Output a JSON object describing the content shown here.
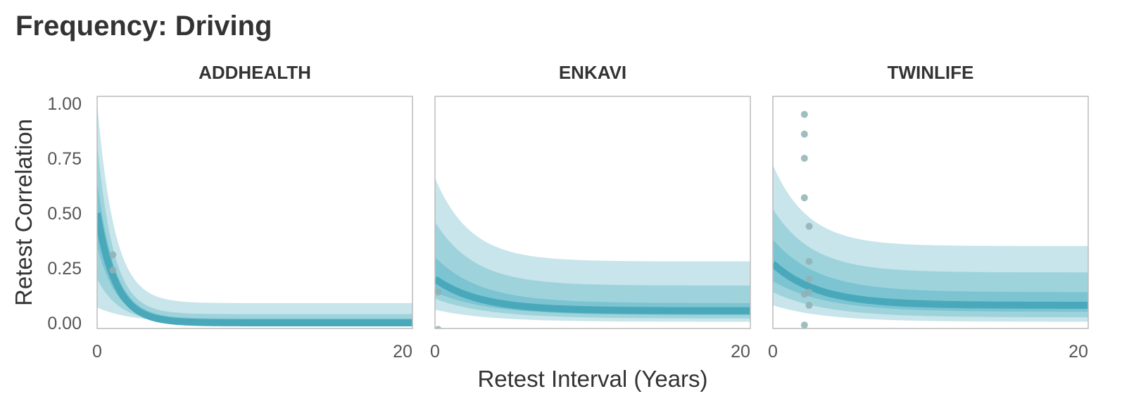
{
  "title": "Frequency: Driving",
  "colors": {
    "band_outer": "#c7e5ea",
    "band_mid": "#9fd3dc",
    "band_inner": "#7cc4d1",
    "line": "#49a9bb",
    "point": "#8fb2b5",
    "frame": "#bbbbbb"
  },
  "chart_data": {
    "type": "line",
    "xlabel": "Retest Interval (Years)",
    "ylabel": "Retest Correlation",
    "xlim": [
      0,
      20
    ],
    "ylim": [
      0,
      1
    ],
    "xticks": [
      "0",
      "20"
    ],
    "yticks": [
      "0.00",
      "0.25",
      "0.50",
      "0.75",
      "1.00"
    ],
    "panels": [
      {
        "name": "ADDHEALTH",
        "median": {
          "start": 0.5,
          "asym": 0.0,
          "rate": 0.85
        },
        "bands": [
          {
            "level": "outer",
            "upper": {
              "start": 1.0,
              "asym": 0.09,
              "rate": 0.9
            },
            "lower": {
              "start": 0.07,
              "asym": 0.0,
              "rate": 0.45
            }
          },
          {
            "level": "mid",
            "upper": {
              "start": 0.82,
              "asym": 0.04,
              "rate": 0.95
            },
            "lower": {
              "start": 0.2,
              "asym": 0.0,
              "rate": 0.7
            }
          },
          {
            "level": "inner",
            "upper": {
              "start": 0.65,
              "asym": 0.02,
              "rate": 0.9
            },
            "lower": {
              "start": 0.35,
              "asym": 0.0,
              "rate": 0.8
            }
          }
        ],
        "points": [
          {
            "x": 1.0,
            "y": 0.31
          },
          {
            "x": 1.0,
            "y": 0.24
          }
        ]
      },
      {
        "name": "ENKAVI",
        "median": {
          "start": 0.2,
          "asym": 0.055,
          "rate": 0.35
        },
        "bands": [
          {
            "level": "outer",
            "upper": {
              "start": 0.66,
              "asym": 0.28,
              "rate": 0.45
            },
            "lower": {
              "start": 0.06,
              "asym": 0.005,
              "rate": 0.3
            }
          },
          {
            "level": "mid",
            "upper": {
              "start": 0.46,
              "asym": 0.17,
              "rate": 0.4
            },
            "lower": {
              "start": 0.11,
              "asym": 0.02,
              "rate": 0.3
            }
          },
          {
            "level": "inner",
            "upper": {
              "start": 0.3,
              "asym": 0.09,
              "rate": 0.35
            },
            "lower": {
              "start": 0.14,
              "asym": 0.035,
              "rate": 0.3
            }
          }
        ],
        "points": [
          {
            "x": 0.2,
            "y": 0.14
          },
          {
            "x": 0.2,
            "y": -0.03
          }
        ]
      },
      {
        "name": "TWINLIFE",
        "median": {
          "start": 0.27,
          "asym": 0.08,
          "rate": 0.35
        },
        "bands": [
          {
            "level": "outer",
            "upper": {
              "start": 0.72,
              "asym": 0.35,
              "rate": 0.45
            },
            "lower": {
              "start": 0.08,
              "asym": 0.005,
              "rate": 0.3
            }
          },
          {
            "level": "mid",
            "upper": {
              "start": 0.52,
              "asym": 0.23,
              "rate": 0.4
            },
            "lower": {
              "start": 0.14,
              "asym": 0.025,
              "rate": 0.3
            }
          },
          {
            "level": "inner",
            "upper": {
              "start": 0.38,
              "asym": 0.14,
              "rate": 0.35
            },
            "lower": {
              "start": 0.19,
              "asym": 0.05,
              "rate": 0.3
            }
          }
        ],
        "points": [
          {
            "x": 2.0,
            "y": 0.95
          },
          {
            "x": 2.0,
            "y": 0.86
          },
          {
            "x": 2.0,
            "y": 0.75
          },
          {
            "x": 2.0,
            "y": 0.57
          },
          {
            "x": 2.3,
            "y": 0.44
          },
          {
            "x": 2.3,
            "y": 0.28
          },
          {
            "x": 2.3,
            "y": 0.2
          },
          {
            "x": 2.3,
            "y": 0.14
          },
          {
            "x": 2.0,
            "y": 0.13
          },
          {
            "x": 2.3,
            "y": 0.08
          },
          {
            "x": 2.0,
            "y": -0.01
          }
        ]
      }
    ]
  }
}
